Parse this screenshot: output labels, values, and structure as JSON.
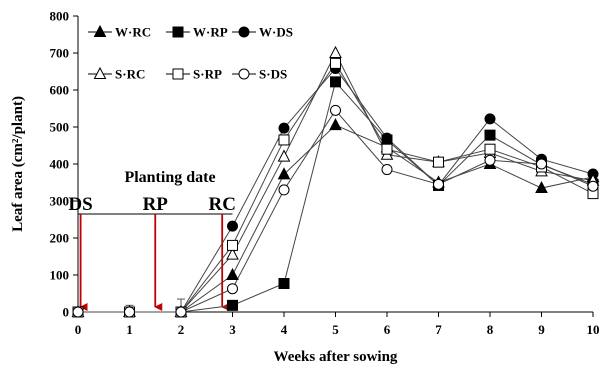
{
  "chart_data": {
    "type": "line",
    "title": "",
    "xlabel": "Weeks after sowing",
    "ylabel": "Leaf area  (cm²/plant)",
    "xlim": [
      0,
      10
    ],
    "ylim": [
      0,
      800
    ],
    "x_ticks": [
      "0",
      "1",
      "2",
      "3",
      "4",
      "5",
      "6",
      "7",
      "8",
      "9",
      "10"
    ],
    "y_ticks": [
      "0",
      "100",
      "200",
      "300",
      "400",
      "500",
      "600",
      "700",
      "800"
    ],
    "grid": false,
    "legend_position": "top-left",
    "series": [
      {
        "name": "W·RC",
        "marker": "triangle",
        "filled": true,
        "x": [
          0,
          1,
          2,
          3,
          4,
          5,
          6,
          7,
          8,
          9,
          10
        ],
        "y": [
          0,
          0,
          0,
          100,
          372,
          505,
          445,
          350,
          400,
          335,
          365
        ]
      },
      {
        "name": "W·RP",
        "marker": "square",
        "filled": true,
        "x": [
          0,
          1,
          2,
          3,
          4,
          5,
          6,
          7,
          8,
          9,
          10
        ],
        "y": [
          0,
          0,
          0,
          18,
          77,
          622,
          465,
          342,
          478,
          398,
          345
        ]
      },
      {
        "name": "W·DS",
        "marker": "circle",
        "filled": true,
        "x": [
          0,
          1,
          2,
          3,
          4,
          5,
          6,
          7,
          8,
          9,
          10
        ],
        "y": [
          0,
          0,
          0,
          232,
          497,
          658,
          470,
          343,
          522,
          413,
          373
        ]
      },
      {
        "name": "S·RC",
        "marker": "triangle",
        "filled": false,
        "x": [
          0,
          1,
          2,
          3,
          4,
          5,
          6,
          7,
          8,
          9,
          10
        ],
        "y": [
          0,
          0,
          0,
          155,
          420,
          700,
          425,
          405,
          430,
          380,
          355
        ]
      },
      {
        "name": "S·RP",
        "marker": "square",
        "filled": false,
        "x": [
          0,
          1,
          2,
          3,
          4,
          5,
          6,
          7,
          8,
          9,
          10
        ],
        "y": [
          0,
          0,
          0,
          180,
          465,
          672,
          440,
          405,
          440,
          392,
          320
        ]
      },
      {
        "name": "S·DS",
        "marker": "circle",
        "filled": false,
        "x": [
          0,
          1,
          2,
          3,
          4,
          5,
          6,
          7,
          8,
          9,
          10
        ],
        "y": [
          0,
          0,
          0,
          63,
          330,
          545,
          385,
          345,
          410,
          400,
          340
        ]
      }
    ],
    "annotations": {
      "planting_label": "Planting date",
      "reference_line_y": 265,
      "markers": [
        {
          "label": "DS",
          "x": 0.05
        },
        {
          "label": "RP",
          "x": 1.5
        },
        {
          "label": "RC",
          "x": 2.8
        }
      ],
      "arrow_color": "#c00000"
    }
  }
}
